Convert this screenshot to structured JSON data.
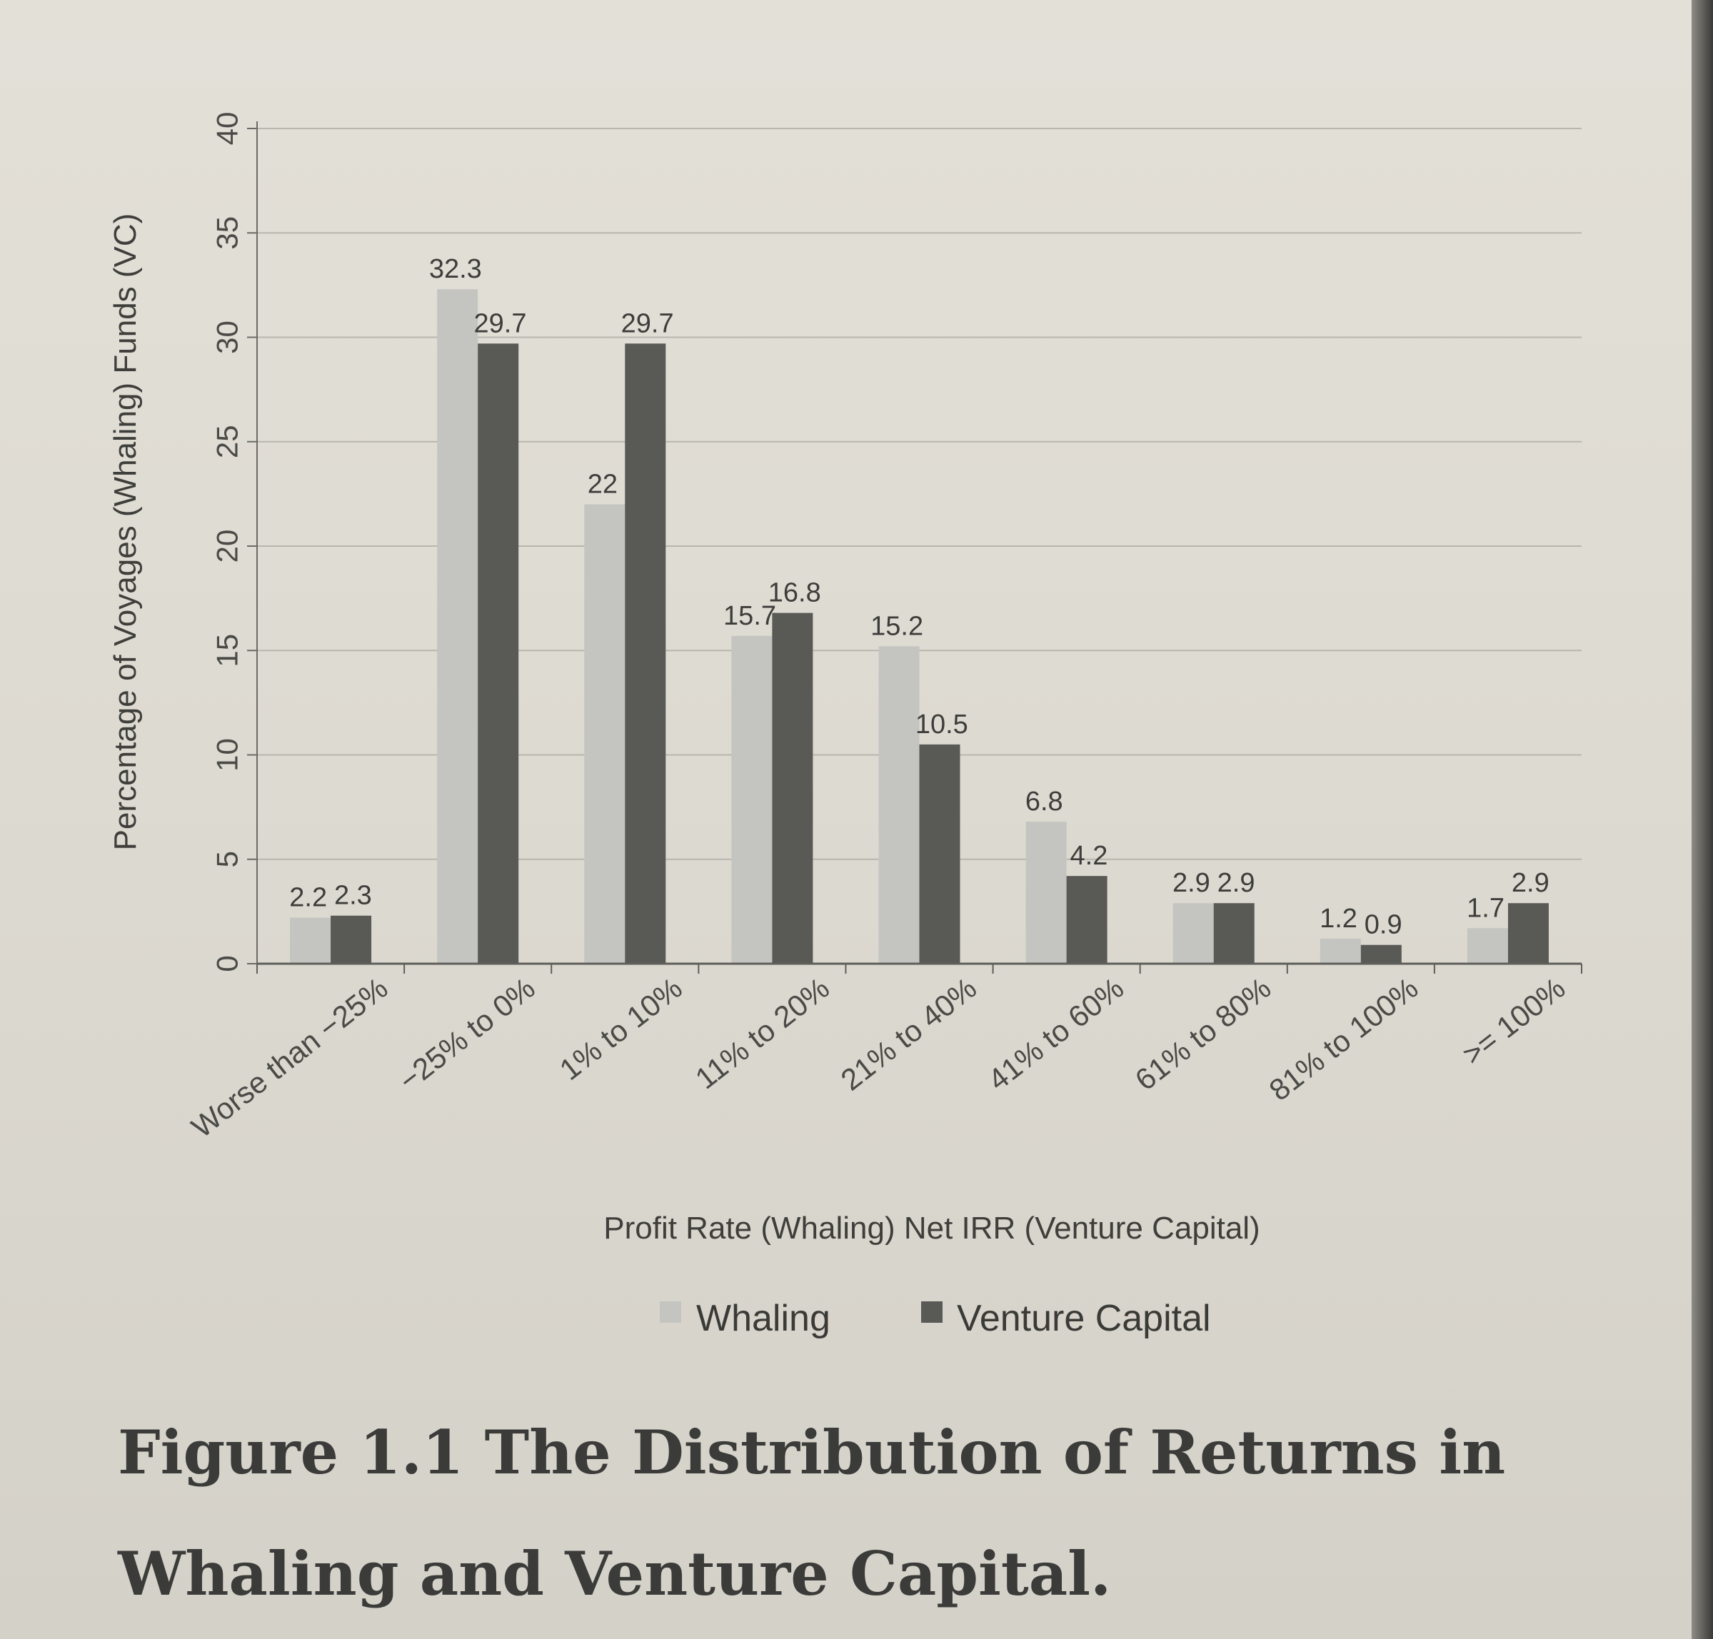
{
  "chart_data": {
    "type": "bar",
    "categories": [
      "Worse than −25%",
      "−25% to 0%",
      "1% to 10%",
      "11% to 20%",
      "21% to 40%",
      "41% to 60%",
      "61% to 80%",
      "81% to 100%",
      ">= 100%"
    ],
    "series": [
      {
        "name": "Whaling",
        "values": [
          2.2,
          32.3,
          22,
          15.7,
          15.2,
          6.8,
          2.9,
          1.2,
          1.7
        ],
        "labels": [
          "2.2",
          "32.3",
          "22",
          "15.7",
          "15.2",
          "6.8",
          "2.9",
          "1.2",
          "1.7"
        ]
      },
      {
        "name": "Venture Capital",
        "values": [
          2.3,
          29.7,
          29.7,
          16.8,
          10.5,
          4.2,
          2.9,
          0.9,
          2.9
        ],
        "labels": [
          "2.3",
          "29.7",
          "29.7",
          "16.8",
          "10.5",
          "4.2",
          "2.9",
          "0.9",
          "2.9"
        ]
      }
    ],
    "yticks": [
      0,
      5,
      10,
      15,
      20,
      25,
      30,
      35,
      40
    ],
    "ylim": [
      0,
      40
    ],
    "xlabel": "Profit Rate (Whaling) Net IRR (Venture Capital)",
    "ylabel": "Percentage of Voyages (Whaling) Funds (VC)",
    "grid": true,
    "legend_position": "bottom",
    "colors": {
      "Whaling": "#c4c4c1",
      "Venture Capital": "#595956"
    }
  },
  "caption": {
    "line1": "Figure 1.1 The Distribution of Returns in",
    "line2": "Whaling and Venture Capital."
  }
}
